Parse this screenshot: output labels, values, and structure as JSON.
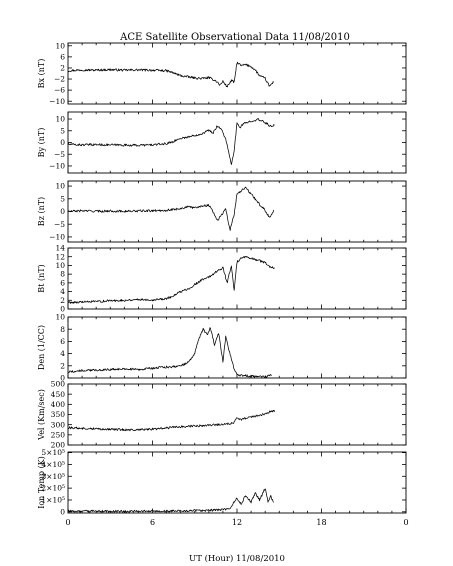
{
  "figure": {
    "title": "ACE Satellite Observational Data   11/08/2010",
    "xlabel": "UT (Hour)   11/08/2010",
    "x_ticks": [
      "0",
      "6",
      "12",
      "18",
      "0"
    ]
  },
  "chart_data": [
    {
      "type": "line",
      "ylabel": "Bx (nT)",
      "xlim": [
        0,
        24
      ],
      "ylim": [
        -11,
        11
      ],
      "yticks": [
        -10,
        -6,
        -2,
        2,
        6,
        10
      ],
      "ytick_labels": [
        "−10",
        "−6",
        "−2",
        "2",
        "6",
        "10"
      ],
      "series": [
        {
          "x": [
            0,
            1,
            2,
            3,
            4,
            5,
            6,
            7,
            7.5,
            8,
            8.5,
            9,
            9.5,
            10,
            10.5,
            10.8,
            11,
            11.3,
            11.6,
            11.8,
            12,
            12.3,
            12.6,
            13,
            13.3,
            13.6,
            14,
            14.3,
            14.6
          ],
          "y": [
            1.0,
            1.3,
            1.2,
            1.4,
            1.2,
            1.3,
            1.2,
            1.0,
            0.2,
            -0.8,
            -1.2,
            -1.6,
            -1.8,
            -1.5,
            -2.6,
            -4.2,
            -2.8,
            -4.8,
            -2.5,
            -3.2,
            4.0,
            2.8,
            3.2,
            2.5,
            1.2,
            -0.8,
            -1.8,
            -4.6,
            -3.0
          ]
        }
      ]
    },
    {
      "type": "line",
      "ylabel": "By (nT)",
      "xlim": [
        0,
        24
      ],
      "ylim": [
        -13,
        13
      ],
      "yticks": [
        -10,
        -5,
        0,
        5,
        10
      ],
      "ytick_labels": [
        "−10",
        "−5",
        "0",
        "5",
        "10"
      ],
      "series": [
        {
          "x": [
            0,
            1,
            2,
            3,
            4,
            5,
            6,
            7,
            7.5,
            8,
            8.5,
            9,
            9.5,
            10,
            10.3,
            10.6,
            10.9,
            11.2,
            11.4,
            11.6,
            11.8,
            12,
            12.2,
            12.5,
            13,
            13.5,
            14,
            14.5,
            14.7
          ],
          "y": [
            -0.8,
            -1.0,
            -0.9,
            -1.0,
            -1.1,
            -1.2,
            -1.0,
            -0.5,
            0.5,
            1.8,
            2.3,
            3.0,
            3.8,
            5.2,
            4.0,
            7.2,
            5.5,
            1.5,
            -4.0,
            -9.5,
            -3.5,
            8.2,
            6.5,
            8.0,
            9.2,
            9.8,
            8.5,
            6.5,
            8.0
          ]
        }
      ]
    },
    {
      "type": "line",
      "ylabel": "Bz (nT)",
      "xlim": [
        0,
        24
      ],
      "ylim": [
        -12,
        12
      ],
      "yticks": [
        -10,
        -5,
        0,
        5,
        10
      ],
      "ytick_labels": [
        "−10",
        "−5",
        "0",
        "5",
        "10"
      ],
      "series": [
        {
          "x": [
            0,
            1,
            2,
            3,
            4,
            5,
            6,
            7,
            7.5,
            8,
            8.5,
            9,
            9.5,
            10,
            10.3,
            10.6,
            10.9,
            11.2,
            11.5,
            11.8,
            12,
            12.3,
            12.6,
            13,
            13.3,
            13.6,
            14,
            14.3,
            14.6
          ],
          "y": [
            0.0,
            0.3,
            0.1,
            0.2,
            0.1,
            0.2,
            0.3,
            0.5,
            0.8,
            1.2,
            1.8,
            1.5,
            2.2,
            2.5,
            0.0,
            -3.5,
            -1.5,
            1.2,
            -7.5,
            -1.0,
            7.0,
            8.2,
            9.5,
            6.8,
            5.0,
            2.8,
            0.5,
            -2.5,
            0.5
          ]
        }
      ]
    },
    {
      "type": "line",
      "ylabel": "Bt (nT)",
      "xlim": [
        0,
        24
      ],
      "ylim": [
        0,
        14
      ],
      "yticks": [
        0,
        2,
        4,
        6,
        8,
        10,
        12,
        14
      ],
      "ytick_labels": [
        "0",
        "2",
        "4",
        "6",
        "8",
        "10",
        "12",
        "14"
      ],
      "series": [
        {
          "x": [
            0,
            1,
            2,
            3,
            4,
            5,
            6,
            7,
            7.5,
            8,
            8.5,
            9,
            9.5,
            10,
            10.5,
            11,
            11.3,
            11.6,
            11.8,
            12,
            12.3,
            12.6,
            13,
            13.5,
            14,
            14.3,
            14.7
          ],
          "y": [
            1.5,
            1.6,
            1.7,
            1.9,
            2.0,
            2.2,
            2.1,
            2.4,
            3.0,
            4.0,
            4.6,
            5.6,
            6.7,
            7.3,
            8.5,
            9.5,
            6.0,
            10.0,
            4.2,
            10.8,
            11.6,
            11.9,
            11.6,
            11.2,
            10.6,
            9.8,
            9.2
          ]
        }
      ]
    },
    {
      "type": "line",
      "ylabel": "Den (1/CC)",
      "xlim": [
        0,
        24
      ],
      "ylim": [
        0,
        10
      ],
      "yticks": [
        0,
        2,
        4,
        6,
        8,
        10
      ],
      "ytick_labels": [
        "0",
        "2",
        "4",
        "6",
        "8",
        "10"
      ],
      "series": [
        {
          "x": [
            0,
            1,
            2,
            3,
            4,
            5,
            6,
            7,
            8,
            8.5,
            9,
            9.3,
            9.6,
            9.9,
            10.1,
            10.4,
            10.7,
            11.0,
            11.2,
            11.5,
            11.8,
            12,
            12.5,
            13,
            14,
            14.5
          ],
          "y": [
            1.0,
            1.2,
            1.3,
            1.4,
            1.5,
            1.4,
            1.6,
            1.8,
            2.0,
            2.5,
            4.0,
            6.5,
            8.0,
            7.0,
            8.3,
            5.5,
            7.4,
            2.6,
            6.8,
            4.0,
            1.5,
            0.5,
            0.4,
            0.3,
            0.2,
            0.5
          ]
        }
      ]
    },
    {
      "type": "line",
      "ylabel": "Vel (Km/sec)",
      "xlim": [
        0,
        24
      ],
      "ylim": [
        200,
        500
      ],
      "yticks": [
        200,
        250,
        300,
        350,
        400,
        450,
        500
      ],
      "ytick_labels": [
        "200",
        "250",
        "300",
        "350",
        "400",
        "450",
        "500"
      ],
      "series": [
        {
          "x": [
            0,
            1,
            2,
            3,
            4,
            5,
            6,
            7,
            8,
            9,
            10,
            10.5,
            11,
            11.5,
            11.8,
            12,
            12.3,
            12.6,
            13,
            13.5,
            14,
            14.3,
            14.7
          ],
          "y": [
            285,
            282,
            280,
            277,
            275,
            274,
            278,
            284,
            290,
            293,
            296,
            300,
            302,
            305,
            312,
            335,
            325,
            332,
            338,
            345,
            352,
            362,
            370
          ]
        }
      ]
    },
    {
      "type": "line",
      "ylabel": "Ion Temp (K)",
      "xlim": [
        0,
        24
      ],
      "ylim": [
        -0.1,
        5.05
      ],
      "yticks": [
        0,
        1,
        2,
        3,
        4,
        5
      ],
      "ytick_labels": [
        "0",
        "1×10⁵",
        "2×10⁵",
        "3×10⁵",
        "4×10⁵",
        "5×10⁵"
      ],
      "series": [
        {
          "x": [
            0,
            2,
            4,
            6,
            8,
            9,
            10,
            10.5,
            11,
            11.5,
            12,
            12.3,
            12.6,
            13,
            13.3,
            13.6,
            14,
            14.2,
            14.4,
            14.6
          ],
          "y": [
            0.05,
            0.05,
            0.04,
            0.05,
            0.08,
            0.1,
            0.12,
            0.15,
            0.18,
            0.25,
            1.2,
            0.6,
            1.4,
            0.8,
            1.6,
            1.0,
            2.0,
            0.9,
            1.3,
            0.8
          ]
        }
      ]
    }
  ]
}
